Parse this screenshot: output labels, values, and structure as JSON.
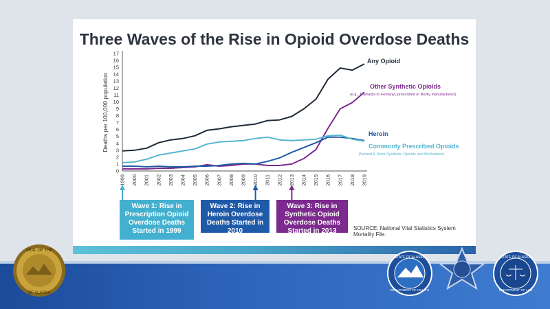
{
  "title": "Three Waves of the Rise in Opioid Overdose Deaths",
  "source": "SOURCE: National Vital Statistics System Mortality File.",
  "colors": {
    "any": "#1f2a3a",
    "synthetic": "#7d2a8e",
    "heroin": "#1f5aa8",
    "prescribed": "#55b5d2",
    "wave1": "#44b0cf",
    "wave2": "#1f5aa8",
    "wave3": "#7d2a8e"
  },
  "waves": [
    {
      "text": "Wave 1: Rise in Prescription Opioid Overdose Deaths Started in 1999",
      "year": "1999"
    },
    {
      "text": "Wave 2: Rise in Heroin Overdose Deaths Started in 2010",
      "year": "2010"
    },
    {
      "text": "Wave 3: Rise in Synthetic Opioid Overdose Deaths Started in 2013",
      "year": "2013"
    }
  ],
  "seals": {
    "left_outer": "SEAL OF THE",
    "left_bottom": "OF ALASKA",
    "health_top": "STATE OF ALASKA",
    "health_bottom": "DEPARTMENT OF HEALTH",
    "law_top": "STATE OF ALASKA",
    "law_bottom": "DEPARTMENT OF LAW"
  },
  "chart_data": {
    "type": "line",
    "title": "Three Waves of the Rise in Opioid Overdose Deaths",
    "xlabel": "",
    "ylabel": "Deaths per 100,000 population",
    "ylim": [
      0,
      17
    ],
    "yticks": [
      0,
      1,
      2,
      3,
      4,
      5,
      6,
      7,
      8,
      9,
      10,
      11,
      12,
      13,
      14,
      15,
      16,
      17
    ],
    "x": [
      "1999",
      "2000",
      "2001",
      "2002",
      "2003",
      "2004",
      "2005",
      "2006",
      "2007",
      "2008",
      "2009",
      "2010",
      "2011",
      "2012",
      "2013",
      "2014",
      "2015",
      "2016",
      "2017",
      "2018",
      "2019"
    ],
    "series": [
      {
        "key": "any",
        "name": "Any Opioid",
        "note": "",
        "values": [
          2.9,
          3.0,
          3.3,
          4.1,
          4.5,
          4.7,
          5.1,
          5.9,
          6.1,
          6.4,
          6.6,
          6.8,
          7.3,
          7.4,
          7.9,
          9.0,
          10.4,
          13.3,
          14.9,
          14.6,
          15.5
        ]
      },
      {
        "key": "synthetic",
        "name": "Other Synthetic Opioids",
        "note": "(e.g., Tramadol or Fentanyl, prescribed or illicitly manufactured)",
        "values": [
          0.3,
          0.3,
          0.3,
          0.4,
          0.4,
          0.5,
          0.6,
          0.9,
          0.7,
          0.8,
          1.0,
          1.0,
          0.8,
          0.8,
          1.0,
          1.8,
          3.1,
          6.2,
          9.0,
          9.9,
          11.4
        ]
      },
      {
        "key": "heroin",
        "name": "Heroin",
        "note": "",
        "values": [
          0.7,
          0.7,
          0.6,
          0.7,
          0.6,
          0.6,
          0.7,
          0.7,
          0.8,
          1.0,
          1.1,
          1.0,
          1.4,
          1.9,
          2.7,
          3.4,
          4.1,
          4.9,
          4.9,
          4.7,
          4.4
        ]
      },
      {
        "key": "prescribed",
        "name": "Commonly Prescribed Opioids",
        "note": "(Natural & Semi-Synthetic Opioids and Methadone)",
        "values": [
          1.2,
          1.3,
          1.7,
          2.3,
          2.6,
          2.9,
          3.2,
          3.9,
          4.2,
          4.3,
          4.4,
          4.7,
          4.9,
          4.5,
          4.4,
          4.5,
          4.6,
          5.1,
          5.2,
          4.6,
          4.3
        ]
      }
    ]
  }
}
